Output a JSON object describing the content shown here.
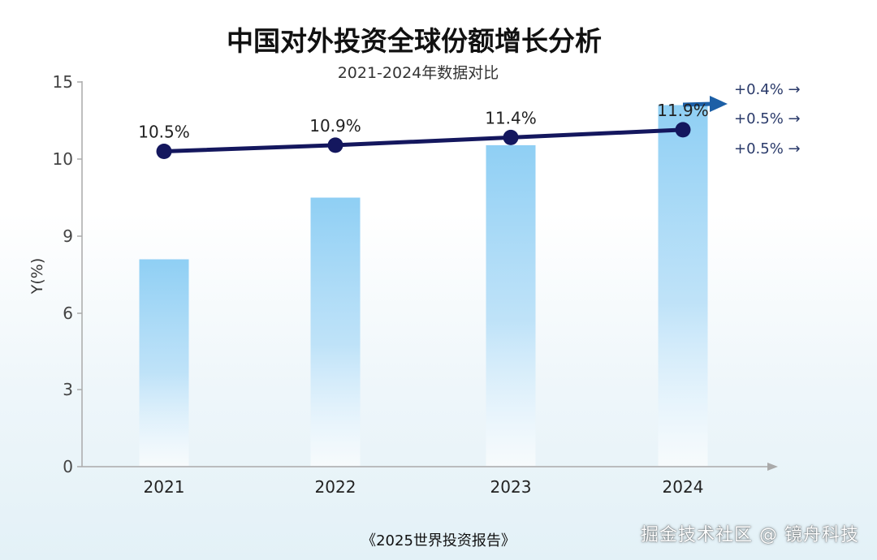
{
  "chart_data": {
    "type": "bar",
    "title": "中国对外投资全球份额增长分析",
    "subtitle": "2021-2024年数据对比",
    "ylabel": "Y(%)",
    "xlabel": "",
    "ylim": [
      0,
      15
    ],
    "yticks": [
      0,
      3,
      6,
      9,
      10,
      15
    ],
    "categories": [
      "2021",
      "2022",
      "2023",
      "2024"
    ],
    "bar_values": [
      8.1,
      9.5,
      10.9,
      13.5
    ],
    "line_values": [
      10.5,
      10.9,
      11.4,
      11.9
    ],
    "data_labels": [
      "10.5%",
      "10.9%",
      "11.4%",
      "11.9%"
    ],
    "growth_labels": [
      "+0.4% →",
      "+0.5% →",
      "+0.5% →"
    ],
    "grid": false,
    "colors": {
      "bar_top": "#8fcff4",
      "bar_bottom": "#ffffff",
      "line": "#14175e",
      "marker": "#14175e",
      "axis": "#aaaaaa",
      "arrow": "#1c5fa6"
    }
  },
  "footer": {
    "source": "《2025世界投资报告》",
    "watermark": "掘金技术社区 @ 镜舟科技"
  }
}
